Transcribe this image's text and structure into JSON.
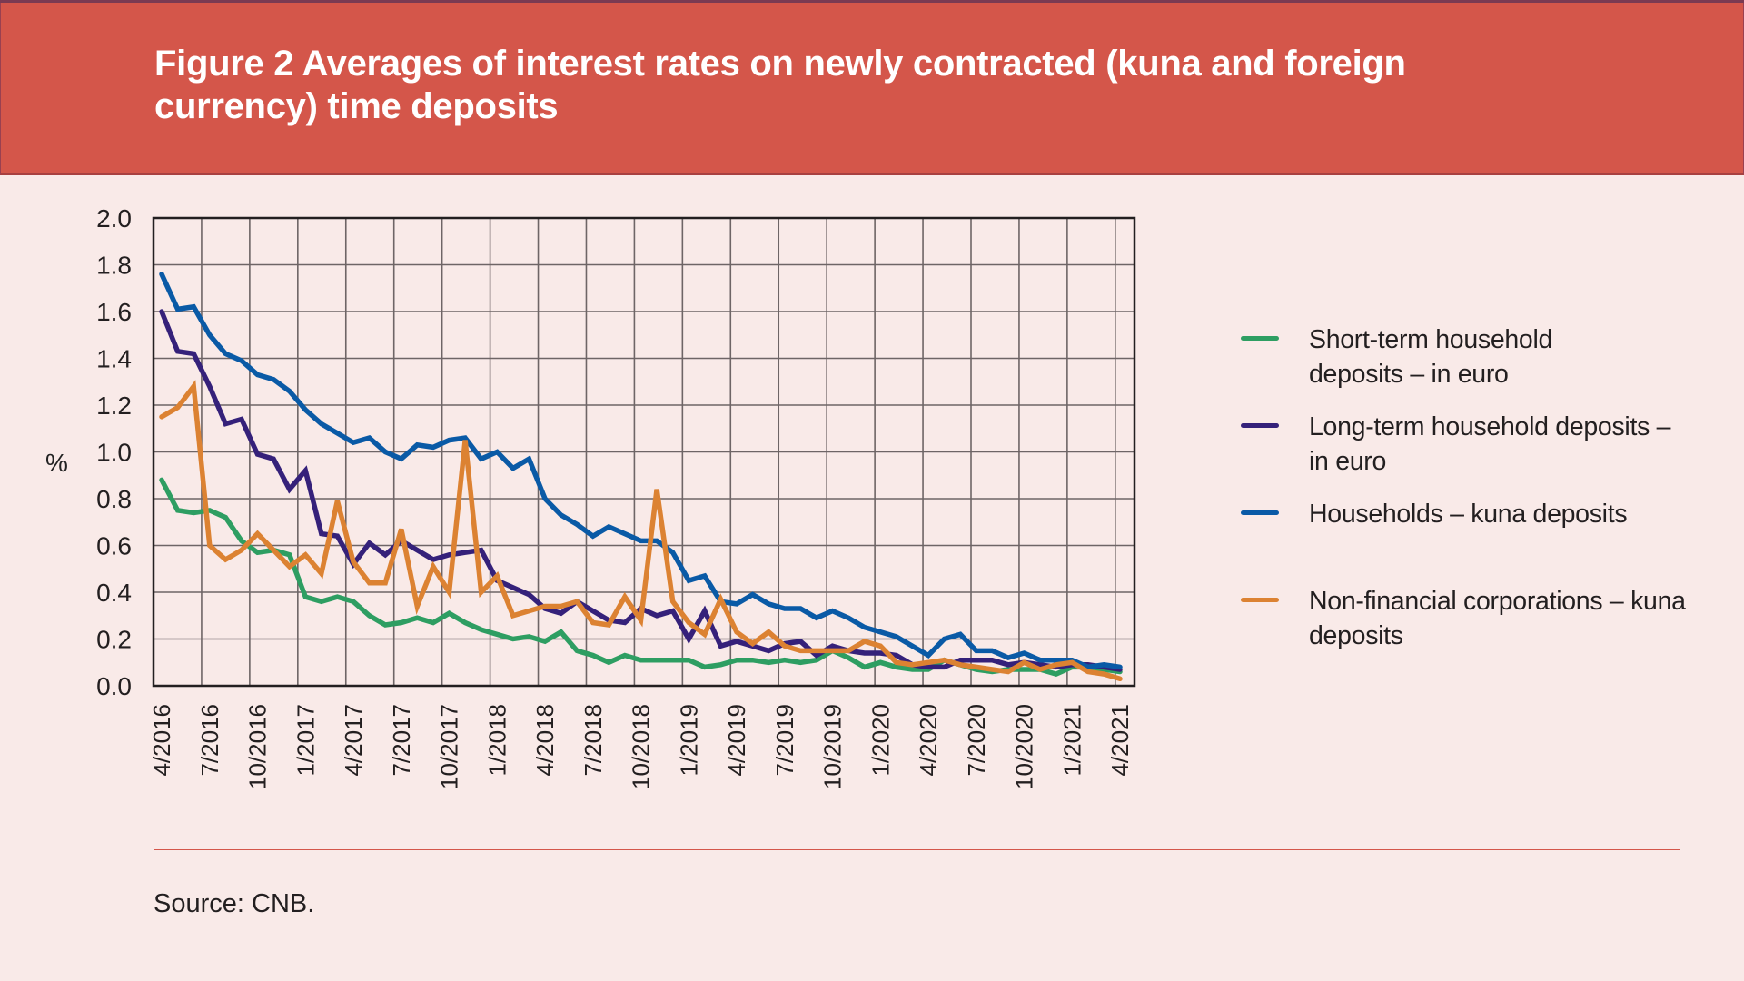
{
  "header": {
    "title": "Figure 2 Averages of interest rates on newly contracted (kuna and foreign currency) time deposits"
  },
  "footer": {
    "source": "Source: CNB."
  },
  "colors": {
    "header_bg": "#d4564a",
    "page_bg": "#f9eae8",
    "short_term": "#2e9e62",
    "long_term": "#35217a",
    "households_kuna": "#0a5aa6",
    "nonfinancial_kuna": "#dc8232"
  },
  "chart_data": {
    "type": "line",
    "title": "Figure 2 Averages of interest rates on newly contracted (kuna and foreign currency) time deposits",
    "xlabel": "",
    "ylabel": "%",
    "ylim": [
      0,
      2.0
    ],
    "yticks": [
      "0.0",
      "0.2",
      "0.4",
      "0.6",
      "0.8",
      "1.0",
      "1.2",
      "1.4",
      "1.6",
      "1.8",
      "2.0"
    ],
    "x_start": "4/2016",
    "x_end": "4/2021",
    "x_frequency": "monthly",
    "xtick_labels": [
      "4/2016",
      "7/2016",
      "10/2016",
      "1/2017",
      "4/2017",
      "7/2017",
      "10/2017",
      "1/2018",
      "4/2018",
      "7/2018",
      "10/2018",
      "1/2019",
      "4/2019",
      "7/2019",
      "10/2019",
      "1/2020",
      "4/2020",
      "7/2020",
      "10/2020",
      "1/2021",
      "4/2021"
    ],
    "grid": true,
    "legend_position": "right",
    "series": [
      {
        "name": "Short-term household deposits – in euro",
        "color": "#2e9e62",
        "values": [
          0.88,
          0.75,
          0.74,
          0.75,
          0.72,
          0.62,
          0.57,
          0.58,
          0.56,
          0.38,
          0.36,
          0.38,
          0.36,
          0.3,
          0.26,
          0.27,
          0.29,
          0.27,
          0.31,
          0.27,
          0.24,
          0.22,
          0.2,
          0.21,
          0.19,
          0.23,
          0.15,
          0.13,
          0.1,
          0.13,
          0.11,
          0.11,
          0.11,
          0.11,
          0.08,
          0.09,
          0.11,
          0.11,
          0.1,
          0.11,
          0.1,
          0.11,
          0.15,
          0.12,
          0.08,
          0.1,
          0.08,
          0.07,
          0.07,
          0.11,
          0.09,
          0.07,
          0.06,
          0.07,
          0.07,
          0.07,
          0.05,
          0.08,
          0.08,
          0.07,
          0.06
        ]
      },
      {
        "name": "Long-term household deposits – in euro",
        "color": "#35217a",
        "values": [
          1.6,
          1.43,
          1.42,
          1.28,
          1.12,
          1.14,
          0.99,
          0.97,
          0.84,
          0.92,
          0.65,
          0.64,
          0.52,
          0.61,
          0.56,
          0.62,
          0.58,
          0.54,
          0.56,
          0.57,
          0.58,
          0.45,
          0.42,
          0.39,
          0.33,
          0.31,
          0.36,
          0.32,
          0.28,
          0.27,
          0.33,
          0.3,
          0.32,
          0.2,
          0.32,
          0.17,
          0.19,
          0.17,
          0.15,
          0.18,
          0.19,
          0.13,
          0.17,
          0.15,
          0.14,
          0.14,
          0.13,
          0.09,
          0.08,
          0.08,
          0.11,
          0.11,
          0.11,
          0.09,
          0.1,
          0.09,
          0.08,
          0.09,
          0.09,
          0.08,
          0.07
        ]
      },
      {
        "name": "Households – kuna deposits",
        "color": "#0a5aa6",
        "values": [
          1.76,
          1.61,
          1.62,
          1.5,
          1.42,
          1.39,
          1.33,
          1.31,
          1.26,
          1.18,
          1.12,
          1.08,
          1.04,
          1.06,
          1.0,
          0.97,
          1.03,
          1.02,
          1.05,
          1.06,
          0.97,
          1.0,
          0.93,
          0.97,
          0.8,
          0.73,
          0.69,
          0.64,
          0.68,
          0.65,
          0.62,
          0.62,
          0.57,
          0.45,
          0.47,
          0.36,
          0.35,
          0.39,
          0.35,
          0.33,
          0.33,
          0.29,
          0.32,
          0.29,
          0.25,
          0.23,
          0.21,
          0.17,
          0.13,
          0.2,
          0.22,
          0.15,
          0.15,
          0.12,
          0.14,
          0.11,
          0.11,
          0.11,
          0.08,
          0.09,
          0.08
        ]
      },
      {
        "name": "Non-financial corporations – kuna deposits",
        "color": "#dc8232",
        "values": [
          1.15,
          1.19,
          1.28,
          0.6,
          0.54,
          0.58,
          0.65,
          0.58,
          0.51,
          0.56,
          0.48,
          0.79,
          0.53,
          0.44,
          0.44,
          0.67,
          0.34,
          0.51,
          0.4,
          1.05,
          0.4,
          0.47,
          0.3,
          0.32,
          0.34,
          0.34,
          0.36,
          0.27,
          0.26,
          0.38,
          0.28,
          0.84,
          0.36,
          0.27,
          0.22,
          0.37,
          0.23,
          0.18,
          0.23,
          0.17,
          0.15,
          0.15,
          0.15,
          0.15,
          0.19,
          0.17,
          0.1,
          0.09,
          0.1,
          0.11,
          0.09,
          0.08,
          0.07,
          0.06,
          0.1,
          0.07,
          0.09,
          0.1,
          0.06,
          0.05,
          0.03
        ]
      }
    ]
  },
  "legend": {
    "items": [
      {
        "label": "Short-term household deposits – in euro",
        "color": "#2e9e62"
      },
      {
        "label": "Long-term household deposits – in euro",
        "color": "#35217a"
      },
      {
        "label": "Households – kuna deposits",
        "color": "#0a5aa6"
      },
      {
        "label": "Non-financial corporations – kuna deposits",
        "color": "#dc8232"
      }
    ]
  }
}
